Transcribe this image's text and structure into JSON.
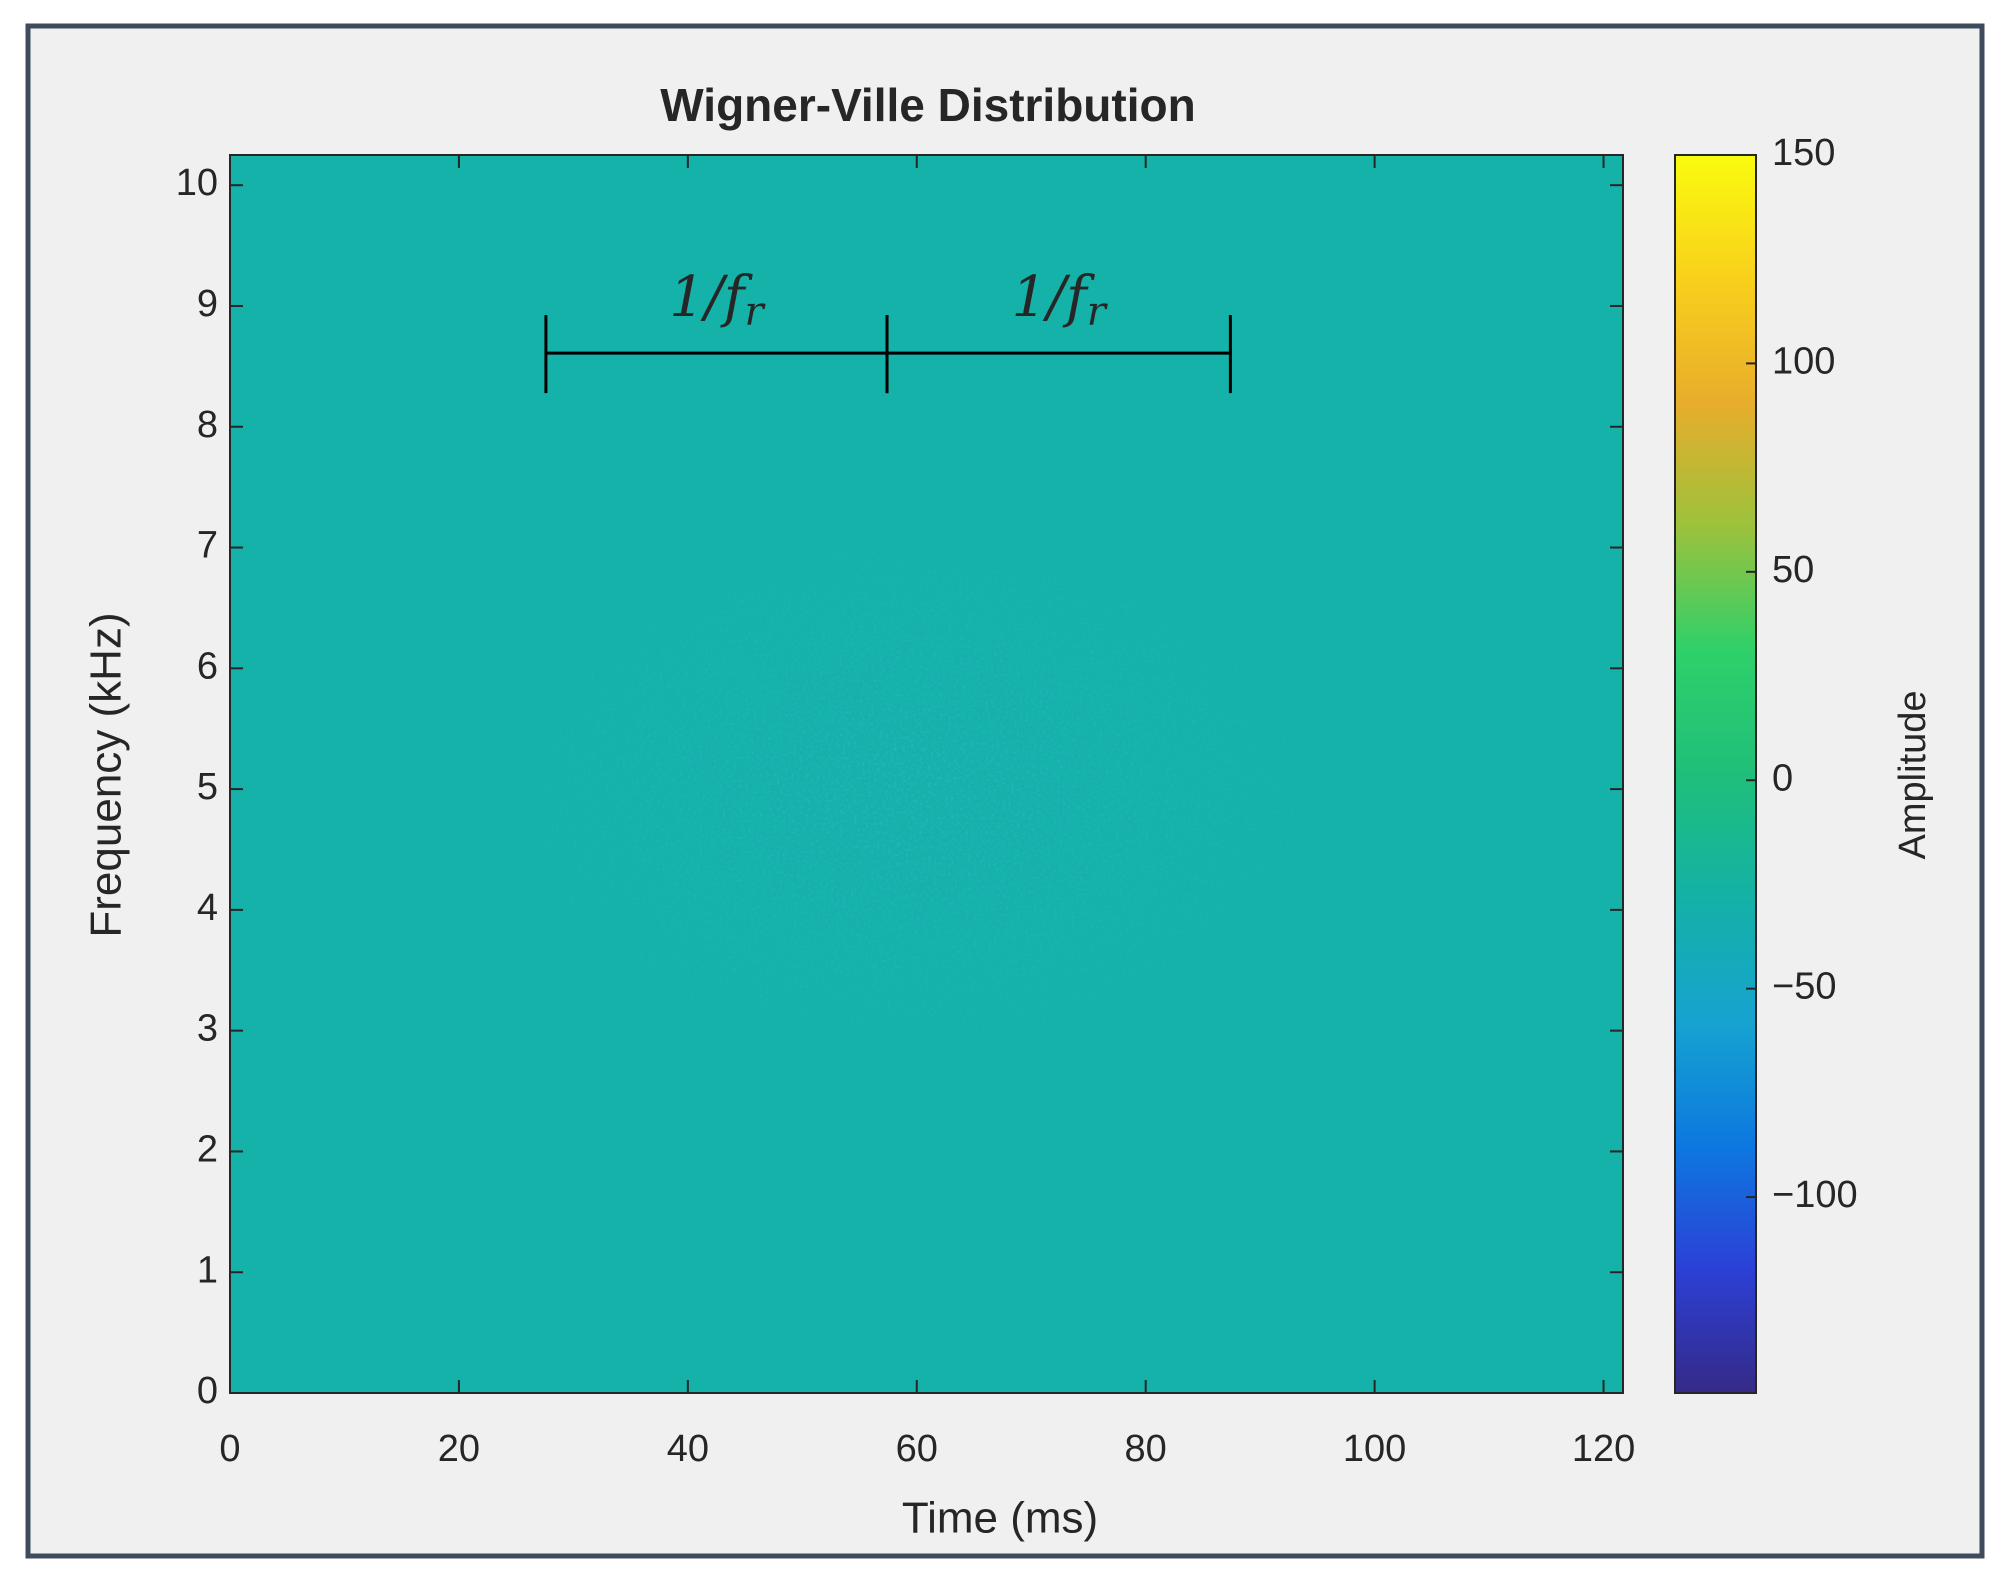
{
  "chart_data": {
    "type": "heatmap",
    "title": "Wigner-Ville Distribution",
    "xlabel": "Time (ms)",
    "ylabel": "Frequency (kHz)",
    "xlim": [
      0,
      121.7
    ],
    "ylim": [
      0,
      10.25
    ],
    "xticks": [
      0,
      20,
      40,
      60,
      80,
      100,
      120
    ],
    "yticks": [
      0,
      1,
      2,
      3,
      4,
      5,
      6,
      7,
      8,
      9,
      10
    ],
    "colorbar": {
      "label": "Amplitude",
      "clim": [
        -147,
        150
      ],
      "ticks": [
        {
          "value": -100,
          "label": "−100"
        },
        {
          "value": -50,
          "label": "−50"
        },
        0,
        50,
        100,
        150
      ],
      "colormap": [
        "#352a87",
        "#2c40d6",
        "#0d78e0",
        "#16a3d0",
        "#14b1a6",
        "#1fbf7a",
        "#2fd06a",
        "#9cc23c",
        "#e8ad2c",
        "#f9d01c",
        "#f9fb0e"
      ]
    },
    "annotations": [
      {
        "text": "1/f",
        "subscript": "r",
        "x": [
          27.6,
          57.4
        ],
        "y": 8.61
      },
      {
        "text": "1/f",
        "subscript": "r",
        "x": [
          57.4,
          87.4
        ],
        "y": 8.61
      }
    ]
  }
}
